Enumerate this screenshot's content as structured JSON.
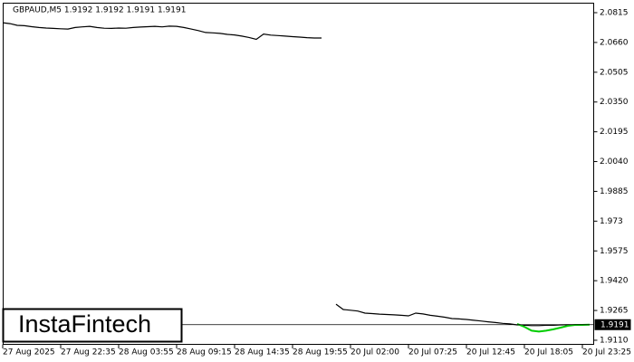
{
  "chart_data": {
    "type": "line",
    "title": "GBPAUD,M5  1.9192 1.9192 1.9191 1.9191",
    "logo": "InstaFintech",
    "xlim": [
      0,
      81
    ],
    "xticks": [
      {
        "value": 0,
        "label": "27 Aug 2025"
      },
      {
        "value": 8,
        "label": "27 Aug 22:35"
      },
      {
        "value": 16,
        "label": "28 Aug 03:55"
      },
      {
        "value": 24,
        "label": "28 Aug 09:15"
      },
      {
        "value": 32,
        "label": "28 Aug 14:35"
      },
      {
        "value": 40,
        "label": "28 Aug 19:55"
      },
      {
        "value": 48,
        "label": "20 Jul 02:00"
      },
      {
        "value": 56,
        "label": "20 Jul 07:25"
      },
      {
        "value": 64,
        "label": "20 Jul 12:45"
      },
      {
        "value": 72,
        "label": "20 Jul 18:05"
      },
      {
        "value": 80,
        "label": "20 Jul 23:25"
      }
    ],
    "ylim": [
      1.9091,
      2.0881
    ],
    "yticks": [
      2.0815,
      {
        "value": 2.066,
        "label": "2.0660"
      },
      2.0505,
      {
        "value": 2.035,
        "label": "2.0350"
      },
      2.0195,
      {
        "value": 2.004,
        "label": "2.0040"
      },
      1.9885,
      1.973,
      1.9575,
      {
        "value": 1.942,
        "label": "1.9420"
      },
      1.9265,
      {
        "value": 1.911,
        "label": "1.9110"
      }
    ],
    "last_price": 1.9191,
    "series": [
      {
        "color": "#000000",
        "values": [
          2.0763,
          2.0758,
          2.0749,
          2.0747,
          2.0742,
          2.0738,
          2.0735,
          2.0733,
          2.0731,
          2.073,
          2.0738,
          2.0741,
          2.0744,
          2.0738,
          2.0734,
          2.0733,
          2.0735,
          2.0734,
          2.0738,
          2.074,
          2.0742,
          2.0744,
          2.0741,
          2.0745,
          2.0744,
          2.0738,
          2.073,
          2.0722,
          2.0712,
          2.071,
          2.0707,
          2.0702,
          2.0699,
          2.0693,
          2.0686,
          2.0676,
          2.0704,
          2.0698,
          2.0696,
          2.0693,
          2.069,
          2.0688,
          2.0685,
          2.0683,
          2.0683,
          null,
          1.9298,
          1.927,
          1.9266,
          1.9262,
          1.9251,
          1.9249,
          1.9246,
          1.9244,
          1.9242,
          1.924,
          1.9237,
          1.9251,
          1.9247,
          1.924,
          1.9235,
          1.923,
          1.9223,
          1.9221,
          1.9218,
          1.9214,
          1.921,
          1.9206,
          1.9202,
          1.9198,
          1.9195,
          1.919,
          1.9188,
          1.9186,
          1.9186,
          1.9188,
          1.9188,
          1.919,
          1.9191,
          1.919,
          1.9191,
          1.9191
        ]
      },
      {
        "color": "#00cc00",
        "values": [
          null,
          null,
          null,
          null,
          null,
          null,
          null,
          null,
          null,
          null,
          null,
          null,
          null,
          null,
          null,
          null,
          null,
          null,
          null,
          null,
          null,
          null,
          null,
          null,
          null,
          null,
          null,
          null,
          null,
          null,
          null,
          null,
          null,
          null,
          null,
          null,
          null,
          null,
          null,
          null,
          null,
          null,
          null,
          null,
          null,
          null,
          null,
          null,
          null,
          null,
          null,
          null,
          null,
          null,
          null,
          null,
          null,
          null,
          null,
          null,
          null,
          null,
          null,
          null,
          null,
          null,
          null,
          null,
          null,
          null,
          null,
          1.9195,
          1.918,
          1.916,
          1.9155,
          1.916,
          1.9167,
          1.9176,
          1.9185,
          1.919,
          1.919,
          1.9191
        ]
      }
    ]
  }
}
